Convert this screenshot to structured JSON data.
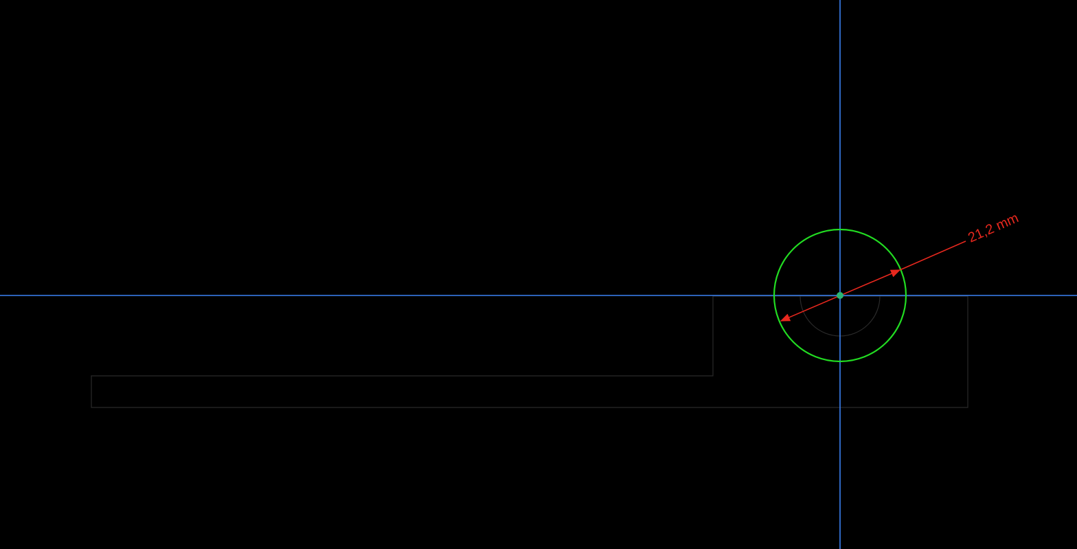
{
  "sketch": {
    "dimension": {
      "label": "21,2 mm",
      "type": "diameter"
    },
    "colors": {
      "background": "#000000",
      "axis": "#3b82f6",
      "selected_circle": "#22dd22",
      "dimension": "#e8281e",
      "geometry": "#2a2a2a",
      "origin_point": "#2bb673"
    },
    "entities": {
      "axes": [
        "horizontal-axis",
        "vertical-axis"
      ],
      "geometry": [
        "profile-outline",
        "inner-arc"
      ],
      "selected": "circle",
      "origin": "center-point"
    }
  }
}
